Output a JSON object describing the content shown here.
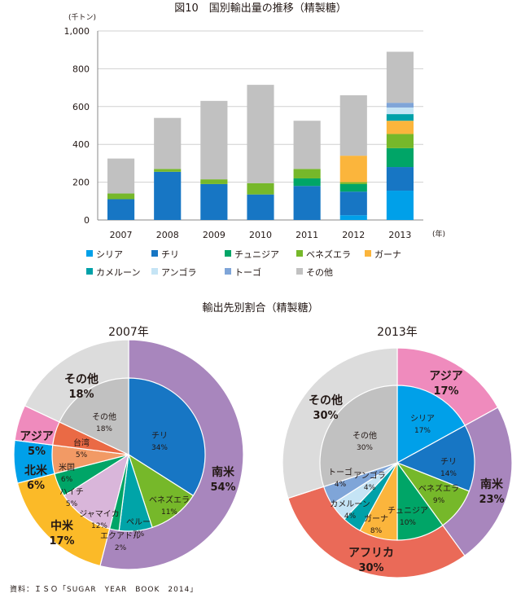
{
  "title": "図10　国別輸出量の推移（精製糖）",
  "section2_title": "輸出先別割合（精製糖）",
  "source": "資料：ＩＳＯ「SUGAR　YEAR　BOOK　2014」",
  "colors": {
    "シリア": "#00a0e9",
    "チリ": "#1776c4",
    "チュニジア": "#00a567",
    "ベネズエラ": "#76b82a",
    "ガーナ": "#fbb53c",
    "カメルーン": "#00a1a9",
    "アンゴラ": "#c5e4f5",
    "トーゴ": "#7fa5d8",
    "その他": "#c1c1c1",
    "南米": "#a886bd",
    "中米": "#fbba28",
    "北米": "#00a0e9",
    "アジア": "#ef8bbd",
    "アフリカ": "#ea6a58",
    "その他外": "#dcdcdc",
    "台湾": "#ea6a45",
    "米国": "#f29a65",
    "ハイチ": "#00a567",
    "ジャマイカ": "#d9b6da",
    "エクアドル": "#00a567",
    "ペルー": "#00a4a8"
  },
  "chart_data": [
    {
      "type": "bar",
      "stacked": true,
      "title": "図10　国別輸出量の推移（精製糖）",
      "unit": "(千トン)",
      "xunit": "(年)",
      "categories": [
        "2007",
        "2008",
        "2009",
        "2010",
        "2011",
        "2012",
        "2013"
      ],
      "ylim": [
        0,
        1000
      ],
      "yticks": [
        0,
        200,
        400,
        600,
        800,
        1000
      ],
      "ytick_labels": [
        "0",
        "200",
        "400",
        "600",
        "800",
        "1,000"
      ],
      "grid": true,
      "series": [
        {
          "name": "シリア",
          "values": [
            0,
            0,
            0,
            0,
            0,
            25,
            155
          ]
        },
        {
          "name": "チリ",
          "values": [
            110,
            255,
            190,
            135,
            180,
            125,
            125
          ]
        },
        {
          "name": "チュニジア",
          "values": [
            0,
            0,
            0,
            0,
            40,
            40,
            100
          ]
        },
        {
          "name": "ベネズエラ",
          "values": [
            30,
            15,
            25,
            60,
            50,
            10,
            75
          ]
        },
        {
          "name": "ガーナ",
          "values": [
            0,
            0,
            0,
            0,
            0,
            140,
            70
          ]
        },
        {
          "name": "カメルーン",
          "values": [
            0,
            0,
            0,
            0,
            0,
            0,
            35
          ]
        },
        {
          "name": "アンゴラ",
          "values": [
            0,
            0,
            0,
            0,
            0,
            0,
            35
          ]
        },
        {
          "name": "トーゴ",
          "values": [
            0,
            0,
            0,
            0,
            0,
            0,
            25
          ]
        },
        {
          "name": "その他",
          "values": [
            185,
            270,
            415,
            520,
            255,
            320,
            270
          ]
        }
      ],
      "legend": [
        "シリア",
        "チリ",
        "チュニジア",
        "ベネズエラ",
        "ガーナ",
        "カメルーン",
        "アンゴラ",
        "トーゴ",
        "その他"
      ]
    },
    {
      "type": "pie",
      "title": "2007年",
      "outer": [
        {
          "label": "南米",
          "value": 54,
          "pct": "54%",
          "color": "南米"
        },
        {
          "label": "中米",
          "value": 17,
          "pct": "17%",
          "color": "中米"
        },
        {
          "label": "北米",
          "value": 6,
          "pct": "6%",
          "color": "北米"
        },
        {
          "label": "アジア",
          "value": 5,
          "pct": "5%",
          "color": "アジア"
        },
        {
          "label": "その他",
          "value": 18,
          "pct": "18%",
          "color": "その他外"
        }
      ],
      "inner": [
        {
          "label": "チリ",
          "value": 34,
          "pct": "34%",
          "color": "チリ"
        },
        {
          "label": "ベネズエラ",
          "value": 11,
          "pct": "11%",
          "color": "ベネズエラ"
        },
        {
          "label": "ペルー",
          "value": 7,
          "pct": "7%",
          "color": "ペルー"
        },
        {
          "label": "エクアドル",
          "value": 2,
          "pct": "2%",
          "color": "エクアドル"
        },
        {
          "label": "ジャマイカ",
          "value": 12,
          "pct": "12%",
          "color": "ジャマイカ"
        },
        {
          "label": "ハイチ",
          "value": 5,
          "pct": "5%",
          "color": "ハイチ"
        },
        {
          "label": "米国",
          "value": 6,
          "pct": "6%",
          "color": "米国"
        },
        {
          "label": "台湾",
          "value": 5,
          "pct": "5%",
          "color": "台湾"
        },
        {
          "label": "その他",
          "value": 18,
          "pct": "18%",
          "color": "その他"
        }
      ]
    },
    {
      "type": "pie",
      "title": "2013年",
      "outer": [
        {
          "label": "アジア",
          "value": 17,
          "pct": "17%",
          "color": "アジア"
        },
        {
          "label": "南米",
          "value": 23,
          "pct": "23%",
          "color": "南米"
        },
        {
          "label": "アフリカ",
          "value": 30,
          "pct": "30%",
          "color": "アフリカ"
        },
        {
          "label": "その他",
          "value": 30,
          "pct": "30%",
          "color": "その他外"
        }
      ],
      "inner": [
        {
          "label": "シリア",
          "value": 17,
          "pct": "17%",
          "color": "シリア"
        },
        {
          "label": "チリ",
          "value": 14,
          "pct": "14%",
          "color": "チリ"
        },
        {
          "label": "ベネズエラ",
          "value": 9,
          "pct": "9%",
          "color": "ベネズエラ"
        },
        {
          "label": "チュニジア",
          "value": 10,
          "pct": "10%",
          "color": "チュニジア"
        },
        {
          "label": "ガーナ",
          "value": 8,
          "pct": "8%",
          "color": "ガーナ"
        },
        {
          "label": "カメルーン",
          "value": 4,
          "pct": "4%",
          "color": "カメルーン"
        },
        {
          "label": "アンゴラ",
          "value": 4,
          "pct": "4%",
          "color": "アンゴラ"
        },
        {
          "label": "トーゴ",
          "value": 4,
          "pct": "4%",
          "color": "トーゴ"
        },
        {
          "label": "その他",
          "value": 30,
          "pct": "30%",
          "color": "その他"
        }
      ]
    }
  ]
}
